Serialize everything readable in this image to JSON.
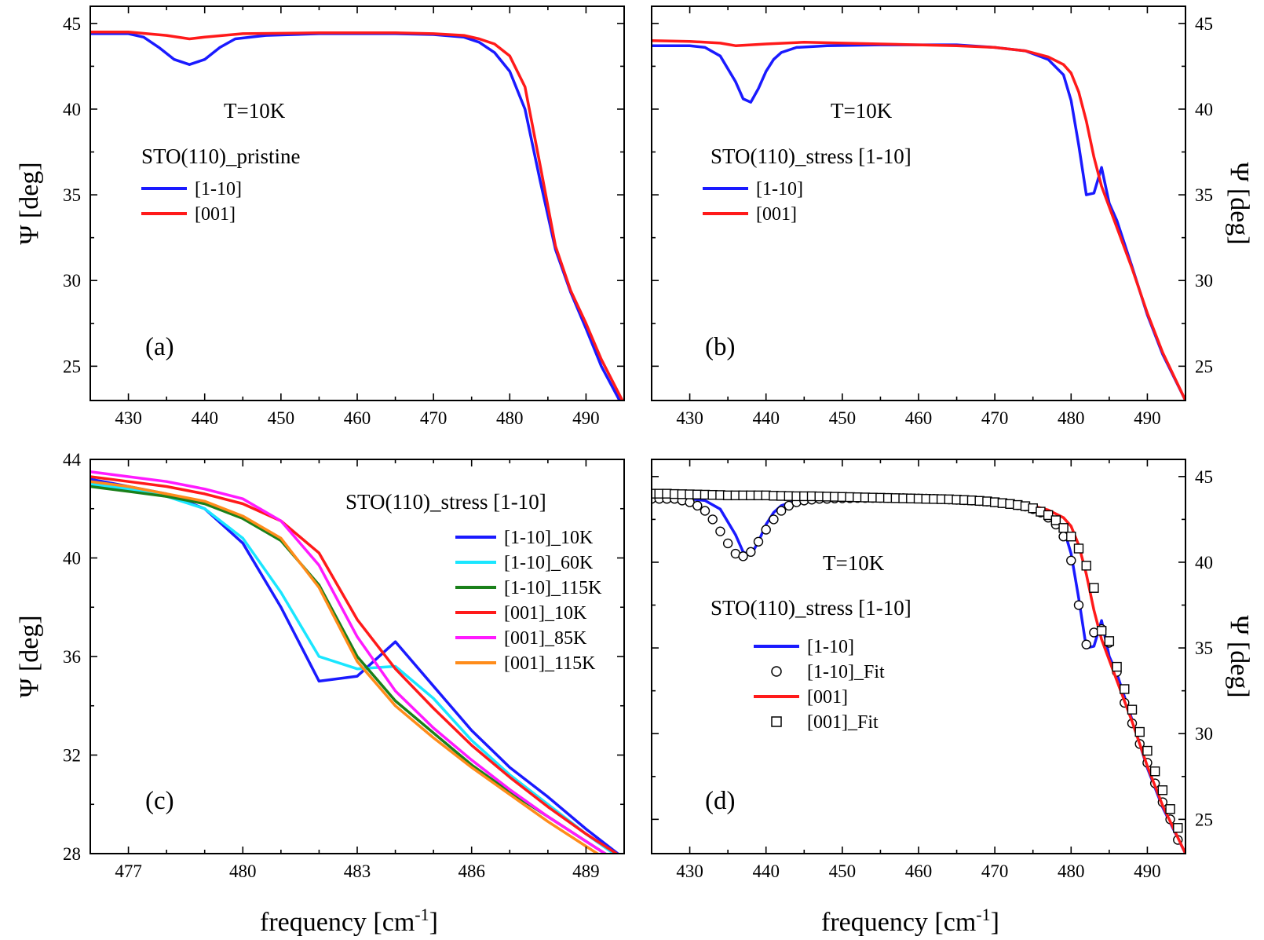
{
  "colors": {
    "blue": "#1a1aff",
    "red": "#ff1a1a",
    "cyan": "#1ae6ff",
    "green": "#1a801a",
    "magenta": "#ff1aff",
    "orange": "#ff8c1a",
    "black": "#000000"
  },
  "x_title_left": {
    "main": "frequency [cm",
    "sup": "-1",
    "end": "]"
  },
  "x_title_right": {
    "main": "frequency [cm",
    "sup": "-1",
    "end": "]"
  },
  "chart_data": [
    {
      "id": "a",
      "type": "line",
      "panel_label": "(a)",
      "annotations": [
        "T=10K",
        "STO(110)_pristine"
      ],
      "xlim": [
        425,
        495
      ],
      "ylim": [
        23,
        46
      ],
      "xticks": [
        430,
        440,
        450,
        460,
        470,
        480,
        490
      ],
      "yticks": [
        25,
        30,
        35,
        40,
        45
      ],
      "xminor": [
        425,
        435,
        445,
        455,
        465,
        475,
        485,
        495
      ],
      "yminor": [
        27.5,
        32.5,
        37.5,
        42.5
      ],
      "y_axis": "left",
      "ylabel": "Ψ [deg]",
      "xlabel": "",
      "legend_position": "upper-left",
      "series": [
        {
          "name": "[1-10]",
          "color": "blue",
          "marker": "none",
          "x": [
            425,
            428,
            430,
            432,
            434,
            436,
            438,
            440,
            442,
            444,
            448,
            455,
            465,
            470,
            474,
            476,
            478,
            480,
            482,
            484,
            486,
            488,
            490,
            492,
            495
          ],
          "y": [
            44.4,
            44.4,
            44.4,
            44.2,
            43.6,
            42.9,
            42.6,
            42.9,
            43.6,
            44.1,
            44.3,
            44.4,
            44.4,
            44.35,
            44.2,
            43.9,
            43.3,
            42.2,
            40.0,
            35.8,
            31.8,
            29.3,
            27.2,
            25.0,
            22.5
          ]
        },
        {
          "name": "[001]",
          "color": "red",
          "marker": "none",
          "x": [
            425,
            430,
            435,
            438,
            440,
            445,
            455,
            465,
            470,
            474,
            476,
            478,
            480,
            482,
            484,
            486,
            488,
            490,
            492,
            495
          ],
          "y": [
            44.5,
            44.5,
            44.3,
            44.1,
            44.2,
            44.4,
            44.45,
            44.45,
            44.4,
            44.3,
            44.1,
            43.8,
            43.1,
            41.3,
            36.7,
            32.0,
            29.4,
            27.5,
            25.4,
            22.8
          ]
        }
      ]
    },
    {
      "id": "b",
      "type": "line",
      "panel_label": "(b)",
      "annotations": [
        "T=10K",
        "STO(110)_stress [1-10]"
      ],
      "xlim": [
        425,
        495
      ],
      "ylim": [
        23,
        46
      ],
      "xticks": [
        430,
        440,
        450,
        460,
        470,
        480,
        490
      ],
      "yticks": [
        25,
        30,
        35,
        40,
        45
      ],
      "xminor": [
        425,
        435,
        445,
        455,
        465,
        475,
        485,
        495
      ],
      "yminor": [
        27.5,
        32.5,
        37.5,
        42.5
      ],
      "y_axis": "right",
      "ylabel": "Ψ [deg]",
      "xlabel": "",
      "legend_position": "upper-left",
      "series": [
        {
          "name": "[1-10]",
          "color": "blue",
          "marker": "none",
          "x": [
            425,
            430,
            432,
            434,
            436,
            437,
            438,
            439,
            440,
            441,
            442,
            444,
            448,
            455,
            465,
            470,
            474,
            477,
            479,
            480,
            481,
            482,
            483,
            484,
            485,
            486,
            488,
            490,
            492,
            495
          ],
          "y": [
            43.7,
            43.7,
            43.6,
            43.1,
            41.6,
            40.6,
            40.4,
            41.2,
            42.2,
            42.9,
            43.3,
            43.6,
            43.7,
            43.75,
            43.75,
            43.6,
            43.4,
            42.9,
            42.0,
            40.5,
            37.9,
            35.0,
            35.1,
            36.6,
            34.5,
            33.5,
            30.8,
            28.0,
            25.7,
            23.0
          ]
        },
        {
          "name": "[001]",
          "color": "red",
          "marker": "none",
          "x": [
            425,
            430,
            434,
            436,
            440,
            445,
            455,
            465,
            470,
            474,
            477,
            479,
            480,
            481,
            482,
            483,
            484,
            486,
            488,
            490,
            492,
            495
          ],
          "y": [
            44.0,
            43.95,
            43.85,
            43.7,
            43.8,
            43.9,
            43.8,
            43.7,
            43.6,
            43.4,
            43.05,
            42.6,
            42.1,
            41.0,
            39.3,
            37.2,
            35.5,
            33.1,
            30.7,
            28.1,
            25.8,
            23.0
          ]
        }
      ]
    },
    {
      "id": "c",
      "type": "line",
      "panel_label": "(c)",
      "annotations": [
        "STO(110)_stress [1-10]"
      ],
      "xlim": [
        476,
        490
      ],
      "ylim": [
        28,
        44
      ],
      "xticks": [
        477,
        480,
        483,
        486,
        489
      ],
      "yticks": [
        28,
        32,
        36,
        40,
        44
      ],
      "xminor": [
        476,
        478,
        479,
        481,
        482,
        484,
        485,
        487,
        488,
        490
      ],
      "yminor": [
        30,
        34,
        38,
        42
      ],
      "y_axis": "left",
      "ylabel": "Ψ [deg]",
      "xlabel": "frequency [cm-1]",
      "legend_position": "right",
      "series": [
        {
          "name": "[1-10]_10K",
          "color": "blue",
          "marker": "none",
          "x": [
            476,
            477,
            478,
            479,
            480,
            481,
            482,
            483,
            484,
            485,
            486,
            487,
            488,
            489,
            490
          ],
          "y": [
            43.2,
            42.9,
            42.6,
            42.0,
            40.6,
            38.0,
            35.0,
            35.2,
            36.6,
            34.8,
            33.0,
            31.5,
            30.3,
            29.0,
            27.8
          ]
        },
        {
          "name": "[1-10]_60K",
          "color": "cyan",
          "marker": "none",
          "x": [
            476,
            477,
            478,
            479,
            480,
            481,
            482,
            483,
            484,
            485,
            486,
            487,
            488,
            489,
            490
          ],
          "y": [
            43.0,
            42.8,
            42.5,
            42.0,
            40.8,
            38.6,
            36.0,
            35.5,
            35.6,
            34.3,
            32.6,
            31.2,
            30.0,
            28.8,
            27.7
          ]
        },
        {
          "name": "[1-10]_115K",
          "color": "green",
          "marker": "none",
          "x": [
            476,
            477,
            478,
            479,
            480,
            481,
            482,
            483,
            484,
            485,
            486,
            487,
            488,
            489,
            490
          ],
          "y": [
            42.9,
            42.7,
            42.5,
            42.2,
            41.6,
            40.7,
            38.9,
            36.0,
            34.2,
            32.9,
            31.6,
            30.5,
            29.5,
            28.5,
            27.5
          ]
        },
        {
          "name": "[001]_10K",
          "color": "red",
          "marker": "none",
          "x": [
            476,
            477,
            478,
            479,
            480,
            481,
            482,
            483,
            484,
            485,
            486,
            487,
            488,
            489,
            490
          ],
          "y": [
            43.3,
            43.1,
            42.9,
            42.6,
            42.2,
            41.5,
            40.2,
            37.5,
            35.5,
            33.9,
            32.4,
            31.1,
            29.9,
            28.8,
            27.8
          ]
        },
        {
          "name": "[001]_85K",
          "color": "magenta",
          "marker": "none",
          "x": [
            476,
            477,
            478,
            479,
            480,
            481,
            482,
            483,
            484,
            485,
            486,
            487,
            488,
            489,
            490
          ],
          "y": [
            43.5,
            43.3,
            43.1,
            42.8,
            42.4,
            41.5,
            39.7,
            36.8,
            34.6,
            33.1,
            31.8,
            30.6,
            29.5,
            28.5,
            27.5
          ]
        },
        {
          "name": "[001]_115K",
          "color": "orange",
          "marker": "none",
          "x": [
            476,
            477,
            478,
            479,
            480,
            481,
            482,
            483,
            484,
            485,
            486,
            487,
            488,
            489,
            490
          ],
          "y": [
            43.1,
            42.9,
            42.6,
            42.3,
            41.7,
            40.8,
            38.8,
            35.8,
            34.0,
            32.7,
            31.5,
            30.4,
            29.3,
            28.3,
            27.3
          ]
        }
      ]
    },
    {
      "id": "d",
      "type": "line",
      "panel_label": "(d)",
      "annotations": [
        "T=10K",
        "STO(110)_stress [1-10]"
      ],
      "xlim": [
        425,
        495
      ],
      "ylim": [
        23,
        46
      ],
      "xticks": [
        430,
        440,
        450,
        460,
        470,
        480,
        490
      ],
      "yticks": [
        25,
        30,
        35,
        40,
        45
      ],
      "xminor": [
        425,
        435,
        445,
        455,
        465,
        475,
        485,
        495
      ],
      "yminor": [
        27.5,
        32.5,
        37.5,
        42.5
      ],
      "y_axis": "right",
      "ylabel": "Ψ [deg]",
      "xlabel": "frequency [cm-1]",
      "legend_position": "left",
      "series": [
        {
          "name": "[1-10]",
          "color": "blue",
          "marker": "none",
          "x": [
            425,
            430,
            432,
            434,
            436,
            437,
            438,
            439,
            440,
            441,
            442,
            444,
            448,
            455,
            465,
            470,
            474,
            477,
            479,
            480,
            481,
            482,
            483,
            484,
            485,
            486,
            488,
            490,
            492,
            495
          ],
          "y": [
            43.7,
            43.7,
            43.6,
            43.1,
            41.6,
            40.6,
            40.4,
            41.2,
            42.2,
            42.9,
            43.3,
            43.6,
            43.7,
            43.75,
            43.75,
            43.6,
            43.4,
            42.9,
            42.0,
            40.5,
            37.9,
            35.0,
            35.1,
            36.6,
            34.5,
            33.5,
            30.8,
            28.0,
            25.7,
            23.0
          ]
        },
        {
          "name": "[1-10]_Fit",
          "color": "black",
          "marker": "circle",
          "x": [
            425,
            426,
            427,
            428,
            429,
            430,
            431,
            432,
            433,
            434,
            435,
            436,
            437,
            438,
            439,
            440,
            441,
            442,
            443,
            444,
            445,
            446,
            447,
            448,
            449,
            450,
            451,
            452,
            453,
            454,
            455,
            456,
            457,
            458,
            459,
            460,
            461,
            462,
            463,
            464,
            465,
            466,
            467,
            468,
            469,
            470,
            471,
            472,
            473,
            474,
            475,
            476,
            477,
            478,
            479,
            480,
            481,
            482,
            483,
            484,
            485,
            486,
            487,
            488,
            489,
            490,
            491,
            492,
            493,
            494
          ],
          "y": [
            43.7,
            43.7,
            43.7,
            43.7,
            43.6,
            43.5,
            43.3,
            43.0,
            42.5,
            41.8,
            41.1,
            40.5,
            40.35,
            40.6,
            41.2,
            41.9,
            42.5,
            43.0,
            43.3,
            43.5,
            43.6,
            43.65,
            43.7,
            43.7,
            43.72,
            43.73,
            43.74,
            43.75,
            43.75,
            43.75,
            43.75,
            43.75,
            43.74,
            43.74,
            43.73,
            43.72,
            43.71,
            43.7,
            43.68,
            43.66,
            43.64,
            43.62,
            43.6,
            43.57,
            43.54,
            43.5,
            43.45,
            43.4,
            43.33,
            43.25,
            43.1,
            42.9,
            42.6,
            42.2,
            41.5,
            40.1,
            37.5,
            35.2,
            35.9,
            36.1,
            35.3,
            33.6,
            31.8,
            30.6,
            29.4,
            28.3,
            27.1,
            26.0,
            25.0,
            23.8
          ]
        },
        {
          "name": "[001]",
          "color": "red",
          "marker": "none",
          "x": [
            425,
            430,
            434,
            436,
            440,
            445,
            455,
            465,
            470,
            474,
            477,
            479,
            480,
            481,
            482,
            483,
            484,
            486,
            488,
            490,
            492,
            495
          ],
          "y": [
            43.9,
            43.9,
            43.85,
            43.8,
            43.85,
            43.85,
            43.8,
            43.7,
            43.6,
            43.4,
            43.05,
            42.6,
            42.1,
            41.0,
            39.3,
            37.2,
            35.5,
            33.1,
            30.7,
            28.1,
            25.8,
            23.0
          ]
        },
        {
          "name": "[001]_Fit",
          "color": "black",
          "marker": "square",
          "x": [
            425,
            426,
            427,
            428,
            429,
            430,
            431,
            432,
            433,
            434,
            435,
            436,
            437,
            438,
            439,
            440,
            441,
            442,
            443,
            444,
            445,
            446,
            447,
            448,
            449,
            450,
            451,
            452,
            453,
            454,
            455,
            456,
            457,
            458,
            459,
            460,
            461,
            462,
            463,
            464,
            465,
            466,
            467,
            468,
            469,
            470,
            471,
            472,
            473,
            474,
            475,
            476,
            477,
            478,
            479,
            480,
            481,
            482,
            483,
            484,
            485,
            486,
            487,
            488,
            489,
            490,
            491,
            492,
            493,
            494
          ],
          "y": [
            44.0,
            44.0,
            44.0,
            43.98,
            43.97,
            43.96,
            43.95,
            43.94,
            43.93,
            43.92,
            43.9,
            43.9,
            43.9,
            43.9,
            43.9,
            43.9,
            43.88,
            43.87,
            43.86,
            43.85,
            43.85,
            43.85,
            43.84,
            43.83,
            43.82,
            43.81,
            43.8,
            43.79,
            43.78,
            43.77,
            43.76,
            43.75,
            43.74,
            43.73,
            43.72,
            43.71,
            43.7,
            43.69,
            43.68,
            43.67,
            43.65,
            43.63,
            43.61,
            43.58,
            43.55,
            43.5,
            43.45,
            43.4,
            43.34,
            43.27,
            43.15,
            42.95,
            42.75,
            42.45,
            42.0,
            41.5,
            40.8,
            39.8,
            38.5,
            36.0,
            35.4,
            33.9,
            32.6,
            31.4,
            30.1,
            29.0,
            27.8,
            26.7,
            25.6,
            24.5
          ]
        }
      ]
    }
  ]
}
